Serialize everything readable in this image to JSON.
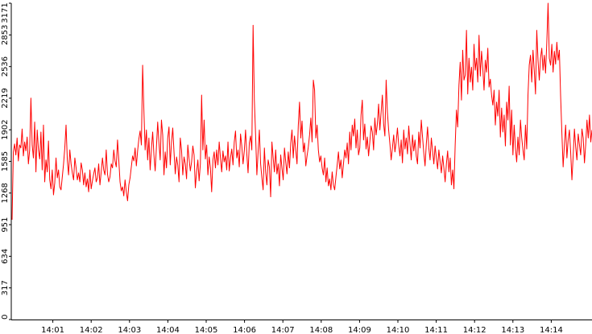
{
  "chart_data": {
    "type": "line",
    "title": "",
    "xlabel": "",
    "ylabel": "",
    "ylim": [
      0,
      3171
    ],
    "y_ticks": [
      "0",
      "317",
      "634",
      "951",
      "1268",
      "1585",
      "1902",
      "2219",
      "2536",
      "2853",
      "3171"
    ],
    "x_ticks": [
      "14:01",
      "14:02",
      "14:03",
      "14:04",
      "14:05",
      "14:06",
      "14:07",
      "14:08",
      "14:09",
      "14:10",
      "14:11",
      "14:12",
      "14:13",
      "14:14"
    ],
    "x_range": [
      "14:00",
      "14:15"
    ],
    "grid": false,
    "line_color": "#ff0000",
    "axis_color": "#000000",
    "series": [
      {
        "values": [
          1000,
          1680,
          1760,
          1650,
          1820,
          1590,
          1750,
          1720,
          1910,
          1640,
          1780,
          1690,
          1830,
          1560,
          1700,
          2220,
          1750,
          1620,
          1980,
          1480,
          1900,
          1700,
          1610,
          1880,
          1500,
          1950,
          1380,
          1600,
          1480,
          1790,
          1400,
          1310,
          1500,
          1250,
          1370,
          1620,
          1420,
          1500,
          1330,
          1300,
          1430,
          1560,
          1720,
          1950,
          1600,
          1450,
          1700,
          1560,
          1470,
          1400,
          1620,
          1520,
          1400,
          1470,
          1380,
          1570,
          1500,
          1350,
          1470,
          1330,
          1410,
          1280,
          1500,
          1310,
          1390,
          1460,
          1520,
          1380,
          1420,
          1560,
          1350,
          1480,
          1620,
          1500,
          1450,
          1700,
          1460,
          1380,
          1430,
          1560,
          1520,
          1700,
          1590,
          1530,
          1800,
          1600,
          1380,
          1290,
          1330,
          1240,
          1400,
          1280,
          1190,
          1350,
          1420,
          1530,
          1640,
          1590,
          1720,
          1540,
          1690,
          1810,
          1890,
          1750,
          2550,
          2100,
          1700,
          1900,
          1600,
          1820,
          1500,
          1710,
          1880,
          1650,
          1490,
          1730,
          1980,
          1770,
          1600,
          2000,
          1850,
          1450,
          1680,
          1520,
          1820,
          1930,
          1550,
          1780,
          1920,
          1680,
          1460,
          1630,
          1550,
          1380,
          1820,
          1700,
          1450,
          1630,
          1560,
          1410,
          1750,
          1610,
          1490,
          1580,
          1740,
          1650,
          1320,
          1480,
          1600,
          1390,
          1560,
          2250,
          1700,
          2000,
          1610,
          1750,
          1450,
          1630,
          1520,
          1280,
          1600,
          1680,
          1520,
          1700,
          1550,
          1780,
          1620,
          1480,
          1690,
          1580,
          1640,
          1500,
          1780,
          1490,
          1620,
          1710,
          1550,
          1780,
          1890,
          1620,
          1700,
          1530,
          1860,
          1740,
          1560,
          1690,
          1900,
          1660,
          1470,
          1770,
          1840,
          1700,
          2950,
          2200,
          1850,
          1450,
          1680,
          1900,
          1560,
          1420,
          1300,
          1720,
          1480,
          1350,
          1600,
          1530,
          1230,
          1780,
          1620,
          1480,
          1700,
          1460,
          1560,
          1340,
          1650,
          1520,
          1400,
          1720,
          1580,
          1460,
          1680,
          1520,
          1770,
          1900,
          1620,
          1840,
          1700,
          1560,
          1940,
          2180,
          1820,
          1990,
          1680,
          1770,
          1540,
          1640,
          1730,
          1850,
          2020,
          1780,
          2400,
          2300,
          1820,
          1950,
          1700,
          1580,
          1640,
          1520,
          1450,
          1620,
          1380,
          1520,
          1340,
          1410,
          1300,
          1480,
          1350,
          1300,
          1430,
          1550,
          1680,
          1510,
          1600,
          1420,
          1560,
          1700,
          1620,
          1770,
          1560,
          1880,
          1700,
          1950,
          1840,
          2010,
          1720,
          1900,
          1650,
          1720,
          2050,
          2200,
          1800,
          1960,
          1710,
          1830,
          1640,
          1780,
          1940,
          1880,
          1700,
          2020,
          1850,
          1960,
          2160,
          1900,
          2080,
          2250,
          1960,
          1840,
          2400,
          2080,
          1900,
          1760,
          1600,
          1720,
          1850,
          1680,
          1780,
          1920,
          1750,
          1640,
          1800,
          1570,
          1900,
          1710,
          1820,
          1660,
          1940,
          1760,
          1600,
          1850,
          1690,
          1800,
          1640,
          1560,
          1880,
          1720,
          2000,
          1830,
          1670,
          1540,
          1760,
          1930,
          1720,
          1600,
          1820,
          1690,
          1560,
          1740,
          1620,
          1510,
          1700,
          1580,
          1470,
          1640,
          1520,
          1380,
          1560,
          1690,
          1480,
          1620,
          1350,
          1500,
          1310,
          1750,
          2100,
          1930,
          2350,
          2580,
          2200,
          2700,
          2400,
          2450,
          2900,
          2260,
          2620,
          2380,
          2530,
          2300,
          2760,
          2500,
          2620,
          2380,
          2850,
          2440,
          2690,
          2520,
          2300,
          2600,
          2480,
          2720,
          2330,
          2410,
          2250,
          2150,
          2300,
          1950,
          2180,
          2040,
          2300,
          1830,
          2120,
          1880,
          2050,
          1740,
          2180,
          2000,
          2340,
          1750,
          2100,
          1650,
          1950,
          1720,
          1580,
          1830,
          1650,
          2000,
          1820,
          1700,
          1600,
          1950,
          1710,
          2250,
          2550,
          2650,
          2380,
          2700,
          2500,
          2260,
          2900,
          2600,
          2400,
          2620,
          2720,
          2500,
          2650,
          2470,
          2780,
          3171,
          2620,
          2550,
          2760,
          2480,
          2690,
          2560,
          2780,
          2600,
          2700,
          2240,
          1870,
          1530,
          1750,
          1950,
          1620,
          1800,
          1900,
          1680,
          1400,
          1640,
          1910,
          1730,
          1600,
          1860,
          1750,
          1650,
          1910,
          1820,
          1570,
          1760,
          2000,
          1820,
          2050,
          1780,
          1900
        ]
      }
    ]
  }
}
